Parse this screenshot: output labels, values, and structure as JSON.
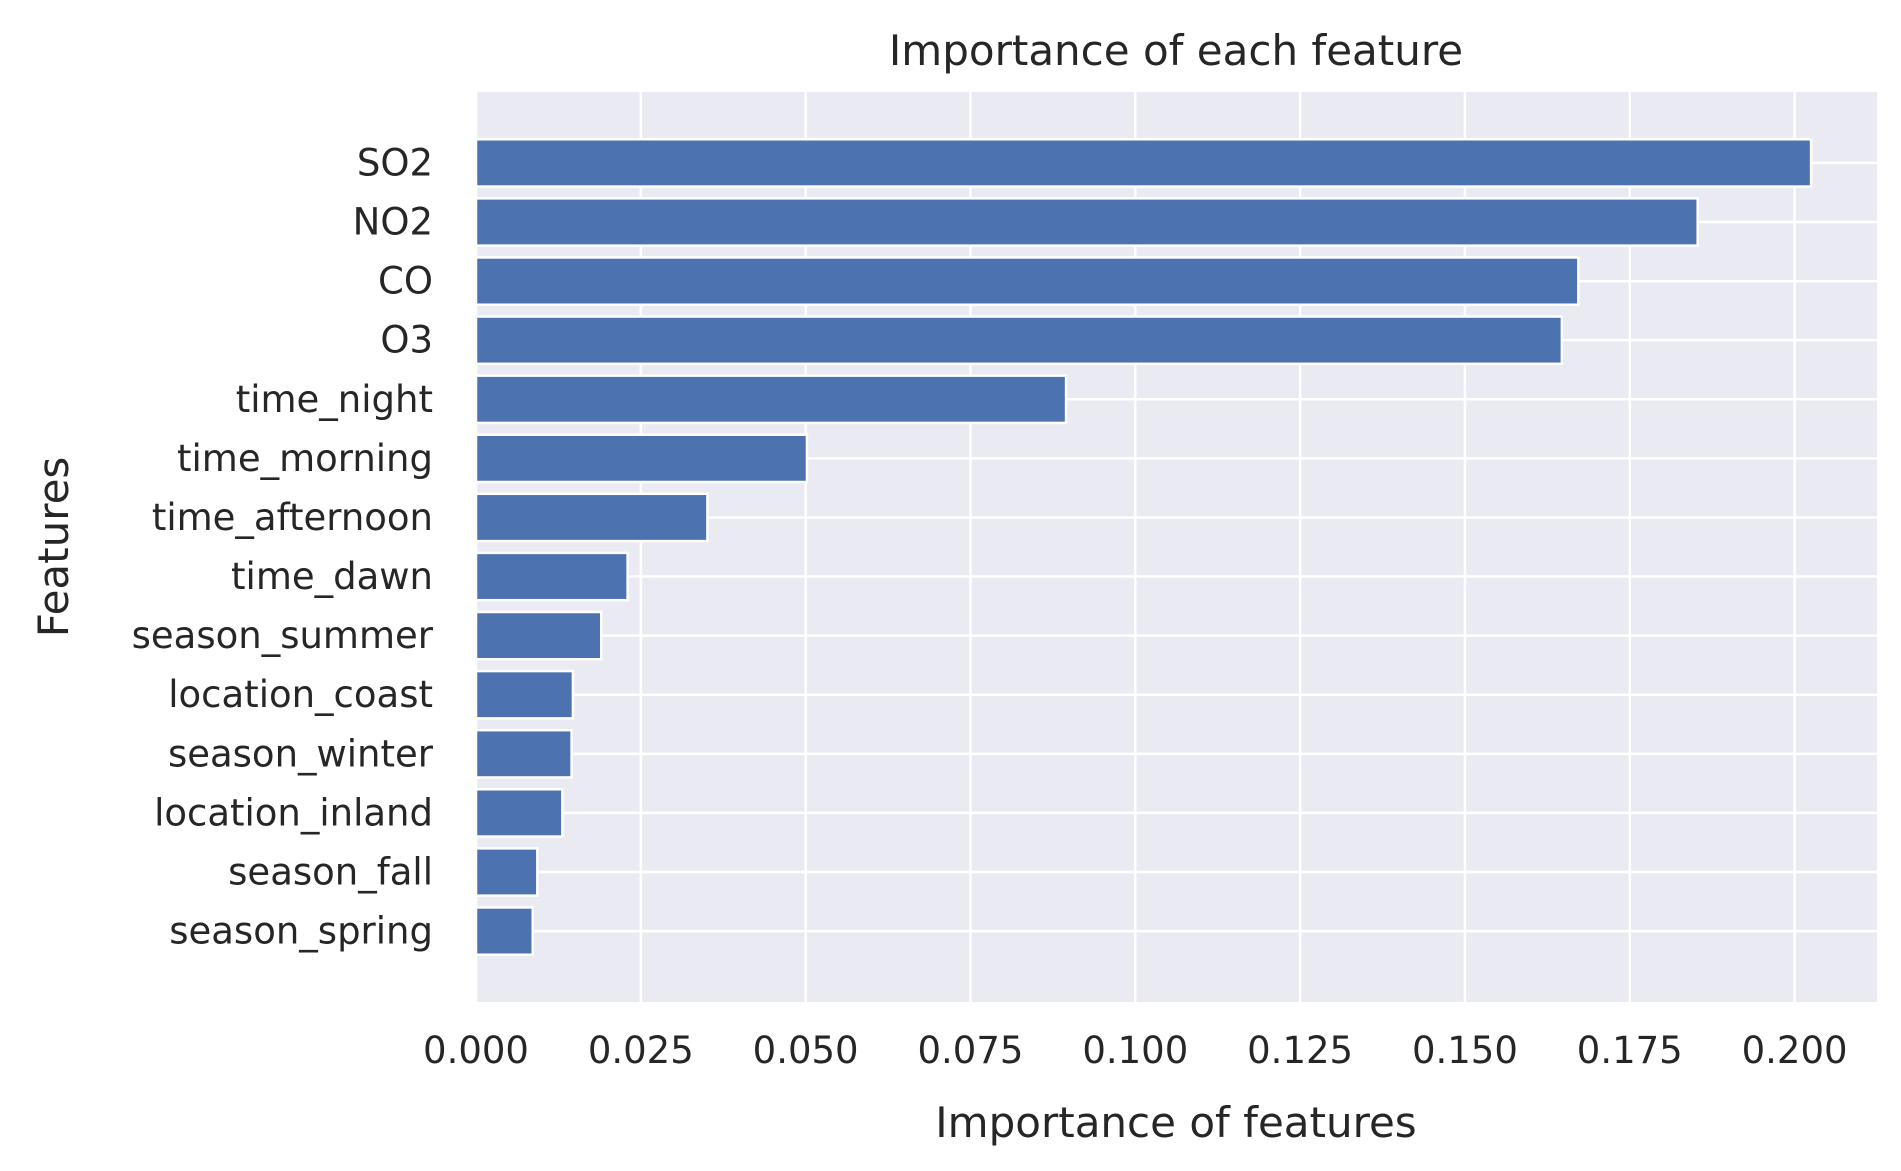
{
  "chart_data": {
    "type": "bar",
    "orientation": "horizontal",
    "title": "Importance of each feature",
    "xlabel": "Importance of features",
    "ylabel": "Features",
    "categories": [
      "SO2",
      "NO2",
      "CO",
      "O3",
      "time_night",
      "time_morning",
      "time_afternoon",
      "time_dawn",
      "season_summer",
      "location_coast",
      "season_winter",
      "location_inland",
      "season_fall",
      "season_spring"
    ],
    "values": [
      0.2025,
      0.1853,
      0.1672,
      0.1647,
      0.0895,
      0.0502,
      0.0351,
      0.023,
      0.019,
      0.0147,
      0.0145,
      0.0131,
      0.0093,
      0.0086
    ],
    "xlim": [
      0,
      0.2125
    ],
    "xticks": [
      "0.000",
      "0.025",
      "0.050",
      "0.075",
      "0.100",
      "0.125",
      "0.150",
      "0.175",
      "0.200"
    ],
    "grid": true,
    "legend": "none",
    "colors": {
      "bar": "#4c72b0",
      "plot_background": "#eaeaf2",
      "grid": "#ffffff",
      "text": "#262626"
    }
  }
}
